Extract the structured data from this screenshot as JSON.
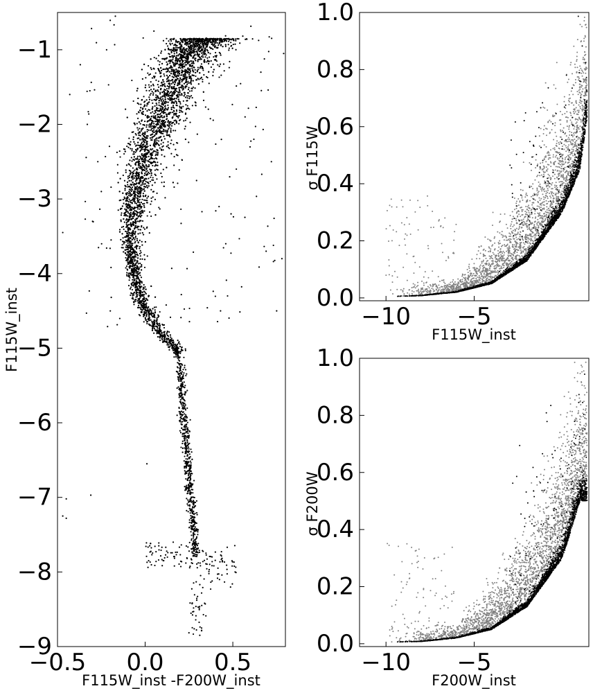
{
  "chart_data": [
    {
      "type": "scatter",
      "panel": "cmd",
      "xlabel": "F115W_inst -F200W_inst",
      "ylabel": "F115W_inst",
      "xlim": [
        -0.5,
        0.8
      ],
      "ylim": [
        -0.5,
        -9
      ],
      "y_inverted": true,
      "xticks": [
        -0.5,
        0.0,
        0.5
      ],
      "xtick_labels": [
        "−0.5",
        "0.0",
        "0.5"
      ],
      "yticks": [
        -1,
        -2,
        -3,
        -4,
        -5,
        -6,
        -7,
        -8,
        -9
      ],
      "ytick_labels": [
        "−1",
        "−2",
        "−3",
        "−4",
        "−5",
        "−6",
        "−7",
        "−8",
        "−9"
      ],
      "grid": false,
      "point_color": "#000000",
      "sequence": [
        {
          "x": 0.32,
          "y": -0.85
        },
        {
          "x": 0.25,
          "y": -1.0
        },
        {
          "x": 0.17,
          "y": -1.3
        },
        {
          "x": 0.09,
          "y": -1.7
        },
        {
          "x": 0.02,
          "y": -2.2
        },
        {
          "x": -0.04,
          "y": -2.7
        },
        {
          "x": -0.08,
          "y": -3.2
        },
        {
          "x": -0.09,
          "y": -3.6
        },
        {
          "x": -0.07,
          "y": -4.0
        },
        {
          "x": -0.04,
          "y": -4.3
        },
        {
          "x": 0.02,
          "y": -4.6
        },
        {
          "x": 0.1,
          "y": -4.85
        },
        {
          "x": 0.17,
          "y": -5.0
        },
        {
          "x": 0.2,
          "y": -5.2
        },
        {
          "x": 0.21,
          "y": -5.6
        },
        {
          "x": 0.22,
          "y": -6.0
        },
        {
          "x": 0.24,
          "y": -6.5
        },
        {
          "x": 0.26,
          "y": -7.0
        },
        {
          "x": 0.28,
          "y": -7.4
        },
        {
          "x": 0.29,
          "y": -7.8
        }
      ],
      "outliers": [
        {
          "x": -0.47,
          "y": -7.25
        },
        {
          "x": -0.45,
          "y": -7.28
        },
        {
          "x": -0.45,
          "y": -7.02
        },
        {
          "x": -0.31,
          "y": -6.97
        },
        {
          "x": -0.47,
          "y": -3.45
        },
        {
          "x": -0.43,
          "y": -1.6
        },
        {
          "x": -0.37,
          "y": -1.2
        },
        {
          "x": -0.33,
          "y": -2.0
        },
        {
          "x": -0.3,
          "y": -3.3
        },
        {
          "x": -0.27,
          "y": -2.5
        },
        {
          "x": -0.25,
          "y": -2.9
        },
        {
          "x": -0.22,
          "y": -1.0
        },
        {
          "x": 0.01,
          "y": -6.55
        },
        {
          "x": 0.43,
          "y": -4.5
        },
        {
          "x": 0.49,
          "y": -3.2
        },
        {
          "x": 0.52,
          "y": -2.6
        },
        {
          "x": 0.57,
          "y": -1.9
        },
        {
          "x": 0.62,
          "y": -2.2
        },
        {
          "x": 0.66,
          "y": -1.3
        },
        {
          "x": 0.69,
          "y": -3.7
        },
        {
          "x": 0.72,
          "y": -2.5
        },
        {
          "x": 0.75,
          "y": -4.5
        },
        {
          "x": 0.78,
          "y": -3.8
        },
        {
          "x": 0.79,
          "y": -1.05
        },
        {
          "x": -0.17,
          "y": -0.55
        },
        {
          "x": 0.05,
          "y": -0.75
        },
        {
          "x": 0.47,
          "y": -4.3
        }
      ]
    },
    {
      "type": "scatter",
      "panel": "error-f115w",
      "xlabel": "F115W_inst",
      "ylabel": "σ F115W",
      "xlim": [
        -11.5,
        1.5
      ],
      "ylim": [
        -0.01,
        1.0
      ],
      "xticks": [
        -10,
        -5
      ],
      "xtick_labels": [
        "−10",
        "−5"
      ],
      "yticks": [
        0.0,
        0.2,
        0.4,
        0.6,
        0.8,
        1.0
      ],
      "ytick_labels": [
        "0.0",
        "0.2",
        "0.4",
        "0.6",
        "0.8",
        "1.0"
      ],
      "grid": false,
      "series": [
        {
          "color": "#000000",
          "envelope": [
            [
              -9.5,
              0.005
            ],
            [
              -8,
              0.008
            ],
            [
              -6,
              0.02
            ],
            [
              -4,
              0.05
            ],
            [
              -2,
              0.13
            ],
            [
              0,
              0.3
            ],
            [
              1,
              0.45
            ],
            [
              1.4,
              0.63
            ]
          ]
        },
        {
          "color": "#808080"
        }
      ]
    },
    {
      "type": "scatter",
      "panel": "error-f200w",
      "xlabel": "F200W_inst",
      "ylabel": "σ F200W",
      "xlim": [
        -11.5,
        1.5
      ],
      "ylim": [
        -0.01,
        1.0
      ],
      "xticks": [
        -10,
        -5
      ],
      "xtick_labels": [
        "−10",
        "−5"
      ],
      "yticks": [
        0.0,
        0.2,
        0.4,
        0.6,
        0.8,
        1.0
      ],
      "ytick_labels": [
        "0.0",
        "0.2",
        "0.4",
        "0.6",
        "0.8",
        "1.0"
      ],
      "grid": false,
      "series": [
        {
          "color": "#000000",
          "envelope": [
            [
              -10,
              0.005
            ],
            [
              -8,
              0.008
            ],
            [
              -6,
              0.02
            ],
            [
              -4,
              0.05
            ],
            [
              -2,
              0.13
            ],
            [
              0,
              0.3
            ],
            [
              1,
              0.5
            ]
          ]
        },
        {
          "color": "#808080"
        }
      ]
    }
  ]
}
